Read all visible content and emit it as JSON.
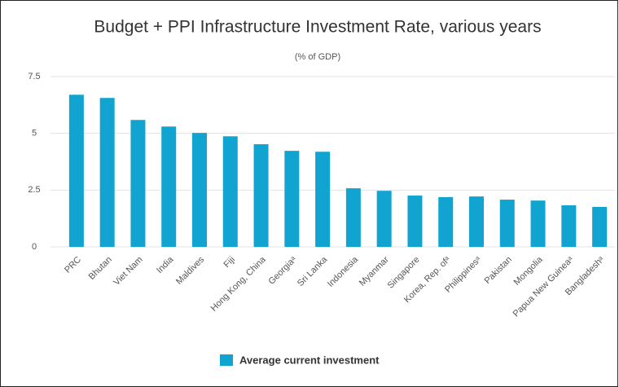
{
  "chart_data": {
    "type": "bar",
    "title": "Budget + PPI Infrastructure Investment Rate, various years",
    "subtitle": "(% of GDP)",
    "categories": [
      "PRC",
      "Bhutan",
      "Viet Nam",
      "India",
      "Maldives",
      "Fiji",
      "Hong Kong, China",
      "Georgiaᵃ",
      "Sri Lanka",
      "Indonesia",
      "Myanmar",
      "Singapore",
      "Korea, Rep. ofᵃ",
      "Philippinesᵃ",
      "Pakistan",
      "Mongolia",
      "Papua New Guineaᵃ",
      "Bangladeshᵃ"
    ],
    "series": [
      {
        "name": "Average current investment",
        "color": "#12a4d0",
        "values": [
          6.7,
          6.56,
          5.59,
          5.3,
          5.02,
          4.87,
          4.52,
          4.23,
          4.19,
          2.58,
          2.47,
          2.26,
          2.19,
          2.22,
          2.08,
          2.04,
          1.83,
          1.76
        ]
      }
    ],
    "ylim": [
      0,
      7.5
    ],
    "yticks": [
      0,
      2.5,
      5,
      7.5
    ],
    "grid": true
  }
}
